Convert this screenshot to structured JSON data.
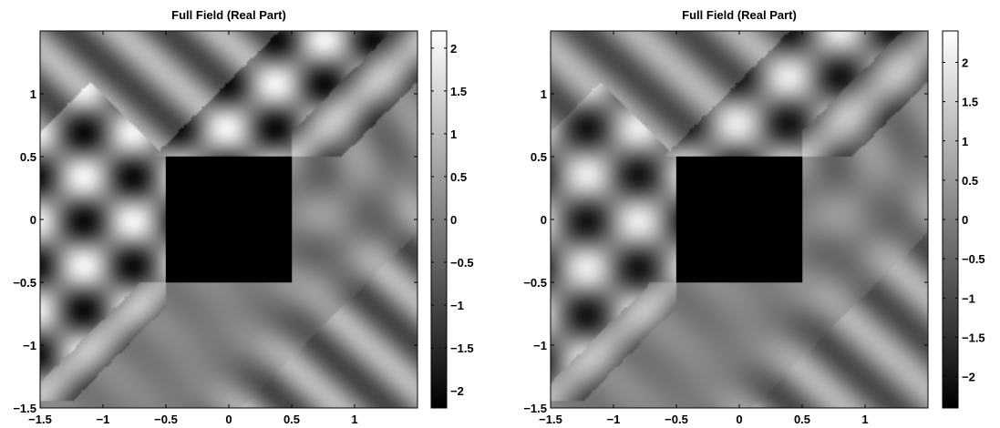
{
  "chart_data": [
    {
      "type": "heatmap",
      "title": "Full Field (Real Part)",
      "xlim": [
        -1.5,
        1.5
      ],
      "ylim": [
        -1.5,
        1.5
      ],
      "x_ticks": [
        -1.5,
        -1,
        -0.5,
        0,
        0.5,
        1
      ],
      "x_tick_labels": [
        "−1.5",
        "−1",
        "−0.5",
        "0",
        "0.5",
        "1"
      ],
      "y_ticks": [
        1,
        0.5,
        0,
        -0.5,
        -1,
        -1.5
      ],
      "y_tick_labels": [
        "1",
        "0.5",
        "0",
        "−0.5",
        "−1",
        "−1.5"
      ],
      "colormap": "gray",
      "clim": [
        -2.2,
        2.2
      ],
      "colorbar_ticks": [
        2,
        1.5,
        1,
        0.5,
        0,
        -0.5,
        -1,
        -1.5,
        -2
      ],
      "colorbar_tick_labels": [
        "2",
        "1.5",
        "1",
        "0.5",
        "0",
        "−0.5",
        "−1",
        "−1.5",
        "−2"
      ],
      "scatterer": {
        "shape": "square",
        "x_range": [
          -0.5,
          0.5
        ],
        "y_range": [
          -0.5,
          0.5
        ]
      }
    },
    {
      "type": "heatmap",
      "title": "Full Field (Real Part)",
      "xlim": [
        -1.5,
        1.5
      ],
      "ylim": [
        -1.5,
        1.5
      ],
      "x_ticks": [
        -1.5,
        -1,
        -0.5,
        0,
        0.5,
        1
      ],
      "x_tick_labels": [
        "−1.5",
        "−1",
        "−0.5",
        "0",
        "0.5",
        "1"
      ],
      "y_ticks": [
        1,
        0.5,
        0,
        -0.5,
        -1,
        -1.5
      ],
      "y_tick_labels": [
        "1",
        "0.5",
        "0",
        "−0.5",
        "−1",
        "−1.5"
      ],
      "colormap": "gray",
      "clim": [
        -2.4,
        2.4
      ],
      "colorbar_ticks": [
        2,
        1.5,
        1,
        0.5,
        0,
        -0.5,
        -1,
        -1.5,
        -2
      ],
      "colorbar_tick_labels": [
        "2",
        "1.5",
        "1",
        "0.5",
        "0",
        "−0.5",
        "−1",
        "−1.5",
        "−2"
      ],
      "scatterer": {
        "shape": "square",
        "x_range": [
          -0.5,
          0.5
        ],
        "y_range": [
          -0.5,
          0.5
        ]
      }
    }
  ]
}
